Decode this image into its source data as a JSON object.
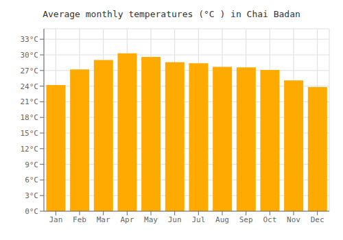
{
  "chart_data": {
    "type": "bar",
    "title": "Average monthly temperatures (°C ) in Chai Badan",
    "categories": [
      "Jan",
      "Feb",
      "Mar",
      "Apr",
      "May",
      "Jun",
      "Jul",
      "Aug",
      "Sep",
      "Oct",
      "Nov",
      "Dec"
    ],
    "values": [
      24.2,
      27.2,
      29.0,
      30.3,
      29.6,
      28.6,
      28.4,
      27.7,
      27.6,
      27.1,
      25.1,
      23.8
    ],
    "color": "#FFAA00",
    "ylim": [
      0,
      35
    ],
    "yticks": [
      {
        "value": 0,
        "label": "0°C"
      },
      {
        "value": 3,
        "label": "3°C"
      },
      {
        "value": 6,
        "label": "6°C"
      },
      {
        "value": 9,
        "label": "9°C"
      },
      {
        "value": 12,
        "label": "12°C"
      },
      {
        "value": 15,
        "label": "15°C"
      },
      {
        "value": 18,
        "label": "18°C"
      },
      {
        "value": 21,
        "label": "21°C"
      },
      {
        "value": 24,
        "label": "24°C"
      },
      {
        "value": 27,
        "label": "27°C"
      },
      {
        "value": 30,
        "label": "30°C"
      },
      {
        "value": 33,
        "label": "33°C"
      }
    ],
    "grid": true
  }
}
